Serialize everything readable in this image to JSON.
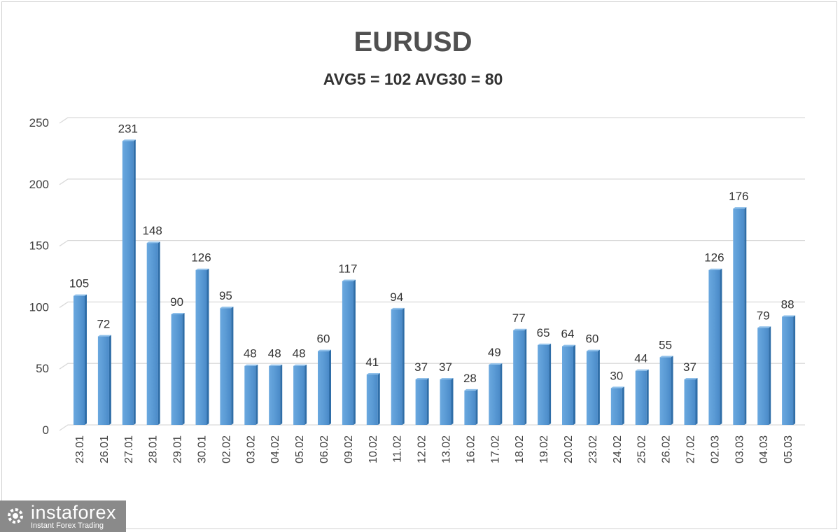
{
  "chart_data": {
    "type": "bar",
    "title": "EURUSD",
    "subtitle": "AVG5 = 102 AVG30 = 80",
    "xlabel": "",
    "ylabel": "",
    "ylim": [
      0,
      250
    ],
    "yticks": [
      0,
      50,
      100,
      150,
      200,
      250
    ],
    "grid": true,
    "categories": [
      "23.01",
      "26.01",
      "27.01",
      "28.01",
      "29.01",
      "30.01",
      "02.02",
      "03.02",
      "04.02",
      "05.02",
      "06.02",
      "09.02",
      "10.02",
      "11.02",
      "12.02",
      "13.02",
      "16.02",
      "17.02",
      "18.02",
      "19.02",
      "20.02",
      "23.02",
      "24.02",
      "25.02",
      "26.02",
      "27.02",
      "02.03",
      "03.03",
      "04.03",
      "05.03"
    ],
    "values": [
      105,
      72,
      231,
      148,
      90,
      126,
      95,
      48,
      48,
      48,
      60,
      117,
      41,
      94,
      37,
      37,
      28,
      49,
      77,
      65,
      64,
      60,
      30,
      44,
      55,
      37,
      126,
      176,
      79,
      88
    ],
    "bar_color": "#5b9bd5"
  },
  "logo": {
    "name": "instaforex",
    "tagline": "Instant Forex Trading"
  }
}
